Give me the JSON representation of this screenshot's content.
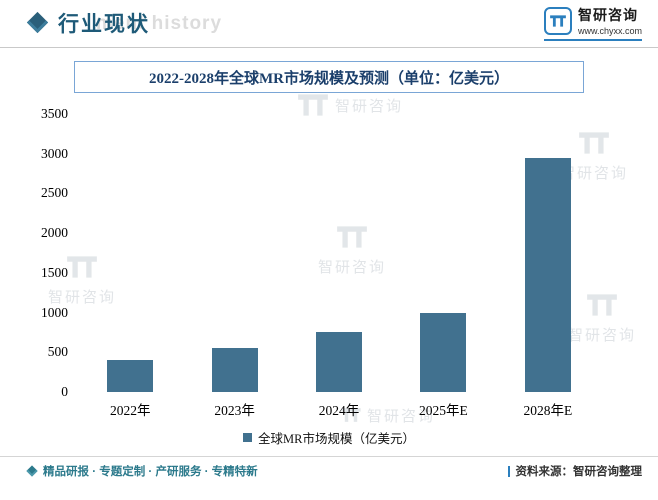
{
  "header": {
    "title": "行业现状",
    "bg_watermark": "ment history",
    "logo": {
      "name": "智研咨询",
      "url": "www.chyxx.com"
    }
  },
  "watermark": {
    "brand": "智研咨询"
  },
  "chart_data": {
    "type": "bar",
    "title": "2022-2028年全球MR市场规模及预测（单位：亿美元）",
    "categories": [
      "2022年",
      "2023年",
      "2024年",
      "2025年E",
      "2028年E"
    ],
    "values": [
      400,
      550,
      750,
      1000,
      2940
    ],
    "ylim": [
      0,
      3500
    ],
    "yticks": [
      0,
      500,
      1000,
      1500,
      2000,
      2500,
      3000,
      3500
    ],
    "grid": false,
    "bar_color": "#41718f",
    "xlabel": "",
    "ylabel": "",
    "legend": {
      "label": "全球MR市场规模（亿美元）",
      "position": "bottom"
    }
  },
  "footer": {
    "tagline": "精品研报 · 专题定制 · 产研服务 · 专精特新",
    "source": "资料来源：智研咨询整理"
  }
}
